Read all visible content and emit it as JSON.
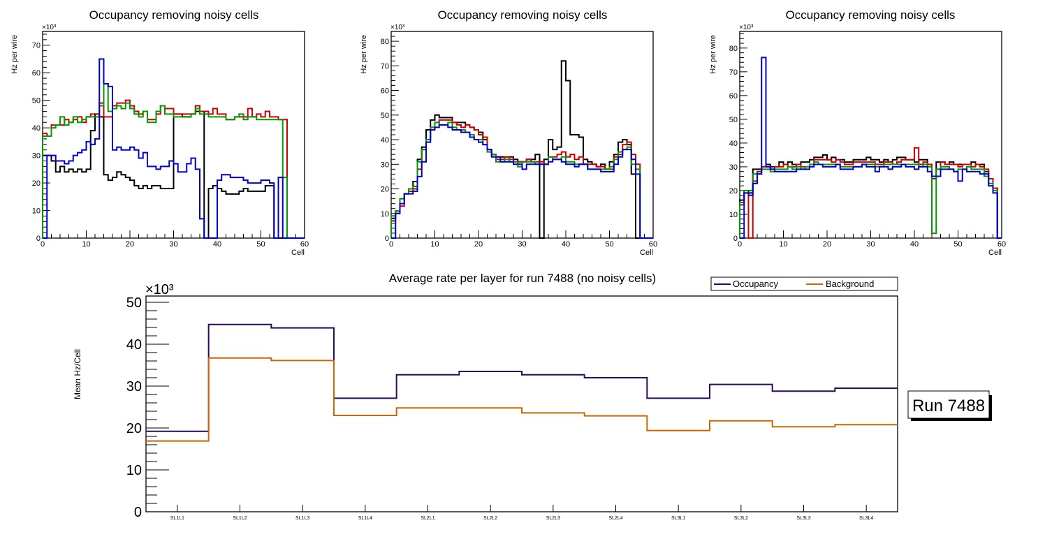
{
  "chart_data": [
    {
      "id": "top1",
      "type": "line",
      "step": true,
      "title": "Occupancy removing noisy cells",
      "xlabel": "Cell",
      "ylabel": "Hz per wire",
      "yexp": "×10³",
      "xlim": [
        0,
        60
      ],
      "ylim": [
        0,
        75
      ],
      "xticks": [
        "0",
        "10",
        "20",
        "30",
        "40",
        "50",
        "60"
      ],
      "yticks": [
        "0",
        "10",
        "20",
        "30",
        "40",
        "50",
        "60",
        "70"
      ],
      "series": [
        {
          "name": "black",
          "color": "#000000",
          "values": [
            30,
            30,
            28,
            24,
            26,
            24,
            25,
            24,
            25,
            24,
            25,
            39,
            45,
            44,
            23,
            21,
            22,
            24,
            23,
            22,
            21,
            19,
            18,
            19,
            18,
            19,
            19,
            18,
            18,
            18,
            45,
            45,
            44,
            44,
            45,
            46,
            46,
            0,
            18,
            19,
            18,
            17,
            16,
            16,
            16,
            17,
            18,
            17,
            17,
            17,
            17,
            19,
            19,
            0,
            0,
            0,
            0,
            0,
            0,
            0
          ]
        },
        {
          "name": "red",
          "color": "#cc0000",
          "values": [
            38,
            37,
            41,
            41,
            41,
            43,
            42,
            43,
            44,
            42,
            44,
            45,
            45,
            49,
            44,
            44,
            48,
            49,
            49,
            50,
            48,
            46,
            45,
            46,
            43,
            43,
            45,
            48,
            47,
            47,
            45,
            45,
            45,
            45,
            45,
            48,
            46,
            46,
            45,
            47,
            45,
            45,
            43,
            43,
            44,
            44,
            44,
            47,
            44,
            45,
            44,
            46,
            44,
            44,
            43,
            43,
            0,
            0,
            0,
            0
          ]
        },
        {
          "name": "green",
          "color": "#009900",
          "values": [
            37,
            37,
            40,
            41,
            44,
            41,
            42,
            44,
            42,
            43,
            44,
            44,
            44,
            48,
            56,
            46,
            47,
            48,
            47,
            49,
            47,
            45,
            44,
            46,
            42,
            42,
            46,
            48,
            45,
            45,
            44,
            44,
            44,
            44,
            45,
            47,
            45,
            45,
            44,
            44,
            44,
            44,
            43,
            43,
            44,
            45,
            43,
            44,
            44,
            43,
            43,
            43,
            43,
            43,
            43,
            22,
            0,
            0,
            0,
            0
          ]
        },
        {
          "name": "blue",
          "color": "#0000cc",
          "values": [
            0,
            30,
            30,
            28,
            28,
            27,
            28,
            30,
            31,
            32,
            35,
            34,
            36,
            65,
            56,
            55,
            32,
            33,
            32,
            32,
            33,
            32,
            29,
            31,
            26,
            26,
            25,
            26,
            26,
            28,
            27,
            24,
            24,
            27,
            29,
            25,
            7,
            0,
            0,
            0,
            21,
            23,
            23,
            22,
            22,
            22,
            21,
            20,
            20,
            20,
            21,
            21,
            20,
            0,
            22,
            0,
            0,
            0,
            0,
            0
          ]
        }
      ]
    },
    {
      "id": "top2",
      "type": "line",
      "step": true,
      "title": "Occupancy removing noisy cells",
      "xlabel": "Cell",
      "ylabel": "Hz per wire",
      "yexp": "×10³",
      "xlim": [
        0,
        60
      ],
      "ylim": [
        0,
        84
      ],
      "xticks": [
        "0",
        "10",
        "20",
        "30",
        "40",
        "50",
        "60"
      ],
      "yticks": [
        "0",
        "10",
        "20",
        "30",
        "40",
        "50",
        "60",
        "70",
        "80"
      ],
      "series": [
        {
          "name": "black",
          "color": "#000000",
          "values": [
            8,
            11,
            16,
            18,
            20,
            23,
            32,
            37,
            44,
            48,
            50,
            49,
            49,
            49,
            47,
            47,
            47,
            46,
            45,
            44,
            43,
            40,
            36,
            34,
            33,
            33,
            33,
            33,
            32,
            31,
            31,
            32,
            32,
            34,
            0,
            32,
            40,
            36,
            37,
            72,
            64,
            42,
            42,
            41,
            32,
            31,
            30,
            29,
            30,
            28,
            31,
            34,
            39,
            40,
            38,
            26,
            0,
            0,
            0,
            0
          ]
        },
        {
          "name": "red",
          "color": "#cc0000",
          "values": [
            7,
            10,
            13,
            18,
            19,
            20,
            28,
            36,
            40,
            45,
            47,
            48,
            48,
            48,
            47,
            46,
            45,
            46,
            45,
            44,
            42,
            41,
            36,
            34,
            32,
            32,
            33,
            32,
            31,
            31,
            31,
            32,
            31,
            31,
            31,
            30,
            33,
            33,
            34,
            35,
            33,
            34,
            32,
            33,
            30,
            30,
            30,
            29,
            29,
            28,
            28,
            33,
            34,
            38,
            39,
            34,
            30,
            0,
            0,
            0
          ]
        },
        {
          "name": "green",
          "color": "#009900",
          "values": [
            9,
            11,
            16,
            18,
            20,
            21,
            31,
            36,
            40,
            45,
            47,
            46,
            46,
            47,
            45,
            44,
            44,
            43,
            42,
            40,
            40,
            38,
            35,
            34,
            31,
            31,
            32,
            31,
            31,
            29,
            31,
            31,
            31,
            30,
            30,
            30,
            33,
            32,
            32,
            33,
            31,
            31,
            30,
            30,
            30,
            28,
            28,
            28,
            28,
            28,
            29,
            32,
            35,
            36,
            37,
            30,
            28,
            0,
            0,
            0
          ]
        },
        {
          "name": "blue",
          "color": "#0000cc",
          "values": [
            0,
            10,
            14,
            18,
            18,
            19,
            25,
            31,
            39,
            44,
            45,
            46,
            46,
            45,
            44,
            44,
            43,
            43,
            41,
            40,
            39,
            38,
            36,
            33,
            33,
            31,
            31,
            31,
            30,
            30,
            28,
            30,
            30,
            30,
            30,
            30,
            31,
            32,
            32,
            31,
            30,
            30,
            29,
            30,
            30,
            28,
            28,
            28,
            27,
            27,
            27,
            30,
            33,
            36,
            36,
            32,
            26,
            0,
            0,
            0
          ]
        }
      ]
    },
    {
      "id": "top3",
      "type": "line",
      "step": true,
      "title": "Occupancy removing noisy cells",
      "xlabel": "Cell",
      "ylabel": "Hz per wire",
      "yexp": "×10³",
      "xlim": [
        0,
        60
      ],
      "ylim": [
        0,
        87
      ],
      "xticks": [
        "0",
        "10",
        "20",
        "30",
        "40",
        "50",
        "60"
      ],
      "yticks": [
        "0",
        "10",
        "20",
        "30",
        "40",
        "50",
        "60",
        "70",
        "80"
      ],
      "series": [
        {
          "name": "black",
          "color": "#000000",
          "values": [
            16,
            20,
            19,
            29,
            29,
            30,
            31,
            30,
            30,
            32,
            31,
            32,
            31,
            31,
            32,
            32,
            33,
            34,
            34,
            35,
            33,
            34,
            33,
            33,
            32,
            32,
            33,
            33,
            33,
            34,
            33,
            33,
            32,
            33,
            32,
            33,
            34,
            34,
            33,
            33,
            32,
            33,
            33,
            31,
            26,
            32,
            32,
            31,
            32,
            31,
            31,
            31,
            31,
            32,
            31,
            31,
            28,
            25,
            21,
            0
          ]
        },
        {
          "name": "red",
          "color": "#cc0000",
          "values": [
            14,
            19,
            0,
            24,
            28,
            30,
            30,
            29,
            30,
            30,
            31,
            30,
            30,
            31,
            30,
            30,
            31,
            33,
            33,
            33,
            33,
            32,
            33,
            32,
            31,
            31,
            32,
            32,
            32,
            32,
            32,
            31,
            31,
            32,
            32,
            31,
            32,
            33,
            33,
            33,
            38,
            31,
            32,
            31,
            25,
            29,
            32,
            31,
            31,
            31,
            30,
            31,
            31,
            30,
            31,
            30,
            29,
            25,
            21,
            0
          ]
        },
        {
          "name": "green",
          "color": "#009900",
          "values": [
            15,
            20,
            20,
            27,
            27,
            29,
            29,
            28,
            29,
            29,
            29,
            30,
            29,
            30,
            29,
            30,
            31,
            32,
            31,
            31,
            31,
            31,
            31,
            30,
            30,
            30,
            30,
            30,
            31,
            31,
            31,
            30,
            30,
            31,
            31,
            31,
            31,
            31,
            31,
            31,
            31,
            30,
            31,
            30,
            2,
            29,
            30,
            30,
            29,
            28,
            29,
            29,
            30,
            29,
            29,
            29,
            26,
            23,
            20,
            0
          ]
        },
        {
          "name": "blue",
          "color": "#0000cc",
          "values": [
            0,
            19,
            18,
            23,
            27,
            76,
            30,
            29,
            28,
            28,
            28,
            28,
            28,
            29,
            29,
            29,
            30,
            31,
            31,
            30,
            30,
            30,
            31,
            29,
            29,
            29,
            30,
            30,
            31,
            30,
            30,
            28,
            30,
            30,
            29,
            30,
            30,
            31,
            30,
            30,
            29,
            30,
            30,
            28,
            26,
            26,
            29,
            29,
            29,
            28,
            24,
            29,
            28,
            28,
            28,
            27,
            27,
            22,
            19,
            0
          ]
        }
      ]
    },
    {
      "id": "bottom",
      "type": "line",
      "step": true,
      "title": "Average rate per layer for run 7488 (no noisy cells)",
      "xlabel": "",
      "ylabel": "Mean Hz/Cell",
      "yexp": "×10³",
      "ylim": [
        0,
        51.5
      ],
      "categories": [
        "SL1L1",
        "SL1L2",
        "SL1L3",
        "SL1L4",
        "SL2L1",
        "SL2L2",
        "SL2L3",
        "SL2L4",
        "SL3L1",
        "SL3L2",
        "SL3L3",
        "SL3L4"
      ],
      "yticks": [
        "0",
        "10",
        "20",
        "30",
        "40",
        "50"
      ],
      "legend": {
        "placement": "top-right",
        "entries": [
          "Occupancy",
          "Background"
        ]
      },
      "annotation": "Run 7488",
      "series": [
        {
          "name": "Occupancy",
          "color": "#2a0a5e",
          "values": [
            19.2,
            44.7,
            43.9,
            27.1,
            32.7,
            33.5,
            32.7,
            32.0,
            27.1,
            30.4,
            28.8,
            29.5
          ]
        },
        {
          "name": "Background",
          "color": "#cc6600",
          "values": [
            16.9,
            36.7,
            36.1,
            23.0,
            24.8,
            24.8,
            23.6,
            22.9,
            19.4,
            21.7,
            20.3,
            20.8
          ]
        }
      ]
    }
  ]
}
